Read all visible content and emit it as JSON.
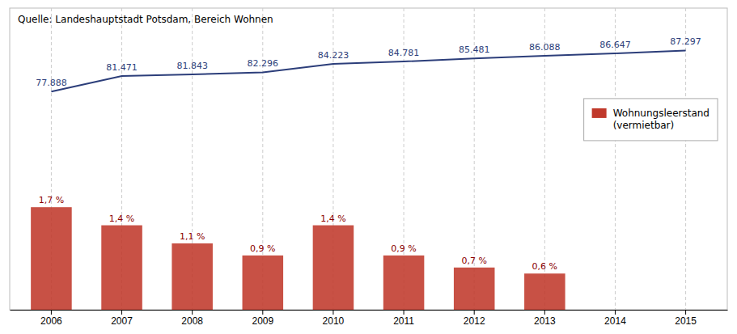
{
  "chart_data": {
    "type": "bar",
    "annotations": [
      "Quelle: Landeshauptstadt Potsdam, Bereich Wohnen"
    ],
    "categories": [
      "2006",
      "2007",
      "2008",
      "2009",
      "2010",
      "2011",
      "2012",
      "2013",
      "2014",
      "2015"
    ],
    "series": [
      {
        "name": "Wohnungsleerstand\n(vermietbar)",
        "type": "bar",
        "axis": "y2",
        "color": "#c0392b",
        "values": [
          1.7,
          1.4,
          1.1,
          0.9,
          1.4,
          0.9,
          0.7,
          0.6,
          0.0,
          0.0
        ],
        "value_labels": [
          "1,7 %",
          "1,4 %",
          "1,1 %",
          "0,9 %",
          "1,4 %",
          "0,9 %",
          "0,7 %",
          "0,6 %",
          null,
          null
        ]
      },
      {
        "type": "line",
        "color": "#2c3e7a",
        "values": [
          77888,
          81471,
          81843,
          82296,
          84223,
          84781,
          85481,
          86088,
          86647,
          87297
        ],
        "value_labels": [
          "77.888",
          "81.471",
          "81.843",
          "82.296",
          "84.223",
          "84.781",
          "85.481",
          "86.088",
          "86.647",
          "87.297"
        ]
      }
    ],
    "ylim": [
      28000,
      97000
    ],
    "y2lim": [
      0,
      5
    ],
    "grid": true,
    "legend": "upper right",
    "data_labels": true,
    "tick_labels": "x"
  }
}
